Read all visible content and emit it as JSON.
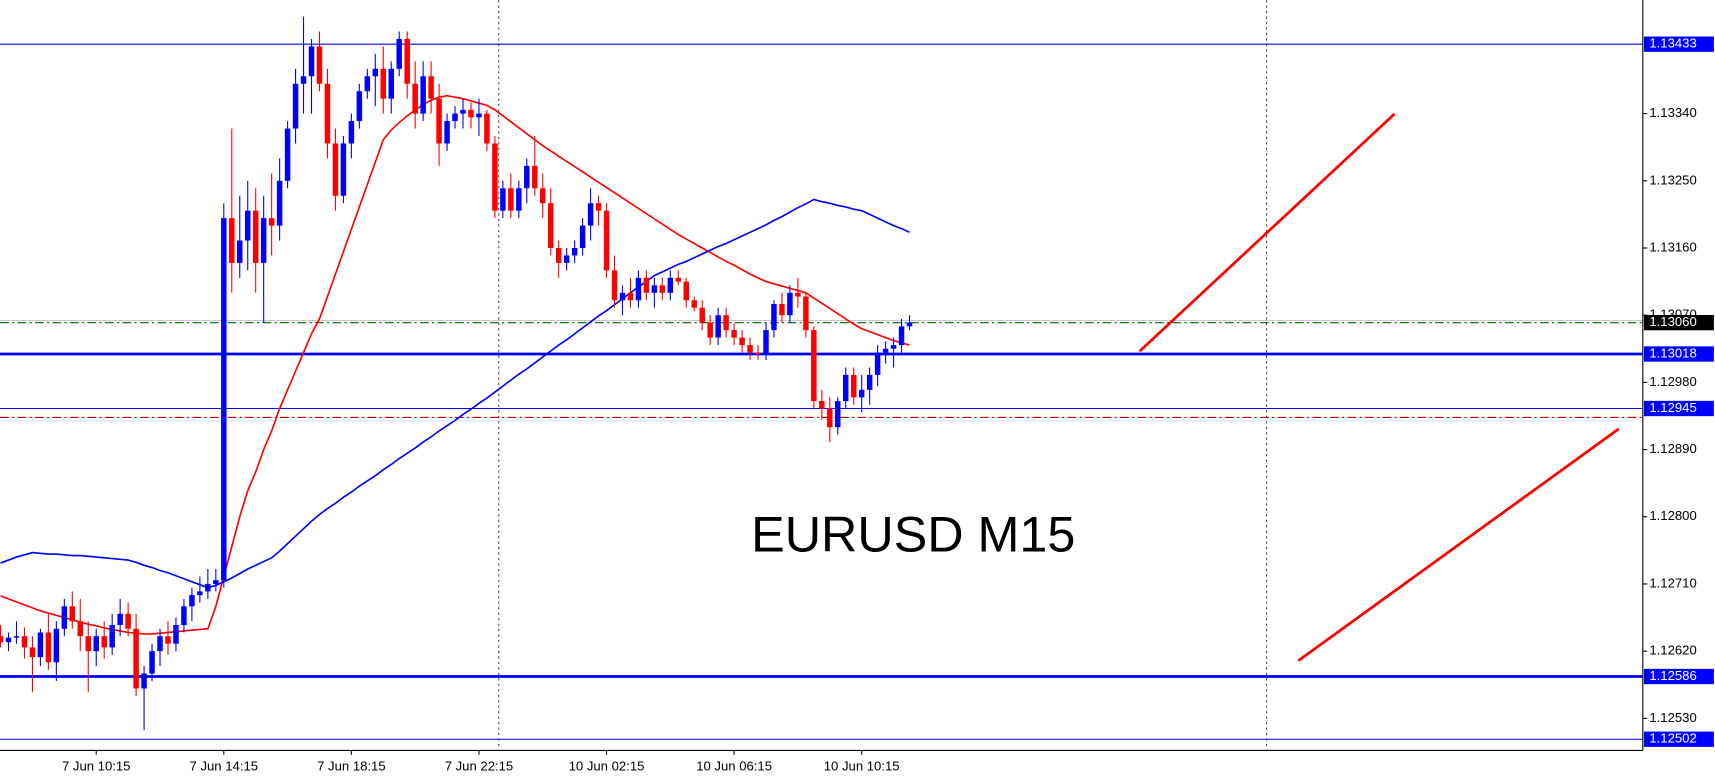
{
  "chart_data": {
    "type": "candlestick",
    "title": "EURUSD M15",
    "categories": [
      null,
      null,
      null,
      null,
      null,
      null,
      null,
      null,
      null,
      null,
      null,
      null,
      "7 Jun 10:15",
      null,
      null,
      null,
      null,
      null,
      null,
      null,
      null,
      null,
      null,
      null,
      null,
      null,
      null,
      null,
      "7 Jun 14:15",
      null,
      null,
      null,
      null,
      null,
      null,
      null,
      null,
      null,
      null,
      null,
      null,
      null,
      null,
      null,
      "7 Jun 18:15",
      null,
      null,
      null,
      null,
      null,
      null,
      null,
      null,
      null,
      null,
      null,
      null,
      null,
      null,
      null,
      "7 Jun 22:15",
      null,
      null,
      null,
      null,
      null,
      null,
      null,
      null,
      null,
      null,
      null,
      null,
      null,
      null,
      null,
      "10 Jun 02:15",
      null,
      null,
      null,
      null,
      null,
      null,
      null,
      null,
      null,
      null,
      null,
      null,
      null,
      null,
      null,
      "10 Jun 06:15",
      null,
      null,
      null,
      null,
      null,
      null,
      null,
      null,
      null,
      null,
      null,
      null,
      null,
      null,
      null,
      "10 Jun 10:15",
      null,
      null,
      null,
      null,
      null,
      null
    ],
    "ohlc": [
      [
        1.1264,
        1.12655,
        1.12625,
        1.12632
      ],
      [
        1.12632,
        1.12645,
        1.1262,
        1.12638
      ],
      [
        1.12638,
        1.1266,
        1.1263,
        1.1264
      ],
      [
        1.1264,
        1.12652,
        1.1261,
        1.12625
      ],
      [
        1.12625,
        1.1264,
        1.12565,
        1.12612
      ],
      [
        1.12612,
        1.1265,
        1.126,
        1.12645
      ],
      [
        1.12645,
        1.1267,
        1.12595,
        1.12605
      ],
      [
        1.12605,
        1.1266,
        1.1258,
        1.1265
      ],
      [
        1.1265,
        1.1269,
        1.1264,
        1.1268
      ],
      [
        1.1268,
        1.127,
        1.1265,
        1.1266
      ],
      [
        1.1266,
        1.1269,
        1.1262,
        1.1264
      ],
      [
        1.1264,
        1.1266,
        1.12565,
        1.1262
      ],
      [
        1.1262,
        1.1265,
        1.126,
        1.1264
      ],
      [
        1.1264,
        1.1266,
        1.1261,
        1.12625
      ],
      [
        1.12625,
        1.1267,
        1.12615,
        1.12655
      ],
      [
        1.12655,
        1.1269,
        1.1264,
        1.1267
      ],
      [
        1.1267,
        1.12685,
        1.1264,
        1.1265
      ],
      [
        1.1265,
        1.1267,
        1.1256,
        1.1257
      ],
      [
        1.1257,
        1.126,
        1.12514,
        1.1259
      ],
      [
        1.1259,
        1.1263,
        1.1258,
        1.1262
      ],
      [
        1.1262,
        1.1265,
        1.126,
        1.1264
      ],
      [
        1.1264,
        1.1266,
        1.12615,
        1.1263
      ],
      [
        1.1263,
        1.12665,
        1.1262,
        1.12655
      ],
      [
        1.12655,
        1.1269,
        1.12645,
        1.1268
      ],
      [
        1.1268,
        1.12705,
        1.1266,
        1.12695
      ],
      [
        1.12695,
        1.1272,
        1.12685,
        1.127
      ],
      [
        1.127,
        1.1273,
        1.1269,
        1.1271
      ],
      [
        1.1271,
        1.1273,
        1.127,
        1.12715
      ],
      [
        1.12715,
        1.1322,
        1.12705,
        1.132
      ],
      [
        1.132,
        1.1332,
        1.131,
        1.1314
      ],
      [
        1.1314,
        1.1323,
        1.1312,
        1.1317
      ],
      [
        1.1317,
        1.1325,
        1.1313,
        1.1321
      ],
      [
        1.1321,
        1.1324,
        1.131,
        1.1314
      ],
      [
        1.1314,
        1.1323,
        1.1306,
        1.132
      ],
      [
        1.132,
        1.1326,
        1.1315,
        1.1319
      ],
      [
        1.1319,
        1.1328,
        1.1317,
        1.1325
      ],
      [
        1.1325,
        1.1333,
        1.1324,
        1.1332
      ],
      [
        1.1332,
        1.134,
        1.133,
        1.1338
      ],
      [
        1.1338,
        1.1347,
        1.1334,
        1.1339
      ],
      [
        1.1339,
        1.1344,
        1.1334,
        1.1343
      ],
      [
        1.1343,
        1.1345,
        1.1337,
        1.1338
      ],
      [
        1.1338,
        1.134,
        1.1328,
        1.133
      ],
      [
        1.133,
        1.1332,
        1.1321,
        1.1323
      ],
      [
        1.1323,
        1.1331,
        1.1322,
        1.133
      ],
      [
        1.133,
        1.1334,
        1.1328,
        1.1333
      ],
      [
        1.1333,
        1.1338,
        1.1332,
        1.1337
      ],
      [
        1.1337,
        1.134,
        1.1336,
        1.1339
      ],
      [
        1.1339,
        1.1342,
        1.1335,
        1.134
      ],
      [
        1.134,
        1.1343,
        1.1334,
        1.1336
      ],
      [
        1.1336,
        1.1341,
        1.1334,
        1.134
      ],
      [
        1.134,
        1.1345,
        1.1339,
        1.1344
      ],
      [
        1.1344,
        1.1345,
        1.1336,
        1.1338
      ],
      [
        1.1338,
        1.1341,
        1.1332,
        1.1334
      ],
      [
        1.1334,
        1.1341,
        1.1333,
        1.1339
      ],
      [
        1.1339,
        1.1341,
        1.1334,
        1.1336
      ],
      [
        1.1336,
        1.1338,
        1.1327,
        1.133
      ],
      [
        1.133,
        1.1334,
        1.1329,
        1.1333
      ],
      [
        1.1333,
        1.1335,
        1.1332,
        1.1334
      ],
      [
        1.1334,
        1.1336,
        1.1332,
        1.13345
      ],
      [
        1.13345,
        1.13355,
        1.1332,
        1.13335
      ],
      [
        1.13335,
        1.1336,
        1.1331,
        1.1334
      ],
      [
        1.1334,
        1.13345,
        1.1329,
        1.133
      ],
      [
        1.133,
        1.1331,
        1.132,
        1.1321
      ],
      [
        1.1321,
        1.1325,
        1.132,
        1.1324
      ],
      [
        1.1324,
        1.1326,
        1.132,
        1.1321
      ],
      [
        1.1321,
        1.1325,
        1.132,
        1.1324
      ],
      [
        1.1324,
        1.1328,
        1.1322,
        1.1327
      ],
      [
        1.1327,
        1.1331,
        1.1323,
        1.1324
      ],
      [
        1.1324,
        1.1326,
        1.132,
        1.1322
      ],
      [
        1.1322,
        1.1324,
        1.1315,
        1.1316
      ],
      [
        1.1316,
        1.1317,
        1.1312,
        1.1314
      ],
      [
        1.1314,
        1.1316,
        1.1313,
        1.1315
      ],
      [
        1.1315,
        1.1317,
        1.1314,
        1.1316
      ],
      [
        1.1316,
        1.132,
        1.1315,
        1.1319
      ],
      [
        1.1319,
        1.1324,
        1.1317,
        1.1322
      ],
      [
        1.1322,
        1.1323,
        1.1319,
        1.1321
      ],
      [
        1.1321,
        1.1322,
        1.1312,
        1.1313
      ],
      [
        1.1313,
        1.1315,
        1.1308,
        1.1309
      ],
      [
        1.1309,
        1.1311,
        1.1307,
        1.131
      ],
      [
        1.131,
        1.1312,
        1.1308,
        1.1309
      ],
      [
        1.1309,
        1.1313,
        1.1308,
        1.1312
      ],
      [
        1.1312,
        1.1313,
        1.1309,
        1.131
      ],
      [
        1.131,
        1.1312,
        1.1308,
        1.1311
      ],
      [
        1.1311,
        1.1312,
        1.1309,
        1.131
      ],
      [
        1.131,
        1.1313,
        1.1309,
        1.1312
      ],
      [
        1.1312,
        1.1313,
        1.1311,
        1.13115
      ],
      [
        1.13115,
        1.1312,
        1.1308,
        1.1309
      ],
      [
        1.1309,
        1.13095,
        1.13075,
        1.1308
      ],
      [
        1.1308,
        1.1309,
        1.1305,
        1.1306
      ],
      [
        1.1306,
        1.1307,
        1.1303,
        1.1304
      ],
      [
        1.1304,
        1.1308,
        1.1303,
        1.1307
      ],
      [
        1.1307,
        1.1308,
        1.1304,
        1.1305
      ],
      [
        1.1305,
        1.1306,
        1.1303,
        1.1304
      ],
      [
        1.1304,
        1.1305,
        1.1302,
        1.1303
      ],
      [
        1.1303,
        1.1304,
        1.1301,
        1.1302
      ],
      [
        1.1302,
        1.1303,
        1.1301,
        1.13018
      ],
      [
        1.13018,
        1.1306,
        1.1301,
        1.1305
      ],
      [
        1.1305,
        1.1309,
        1.1304,
        1.13085
      ],
      [
        1.13085,
        1.131,
        1.1306,
        1.1307
      ],
      [
        1.1307,
        1.1311,
        1.1306,
        1.131
      ],
      [
        1.131,
        1.1312,
        1.1308,
        1.13095
      ],
      [
        1.13095,
        1.131,
        1.1304,
        1.1305
      ],
      [
        1.1305,
        1.13055,
        1.12945,
        1.12955
      ],
      [
        1.12955,
        1.1297,
        1.1293,
        1.12945
      ],
      [
        1.12945,
        1.1296,
        1.129,
        1.1292
      ],
      [
        1.1292,
        1.1296,
        1.1291,
        1.12955
      ],
      [
        1.12955,
        1.13,
        1.12945,
        1.1299
      ],
      [
        1.1299,
        1.13,
        1.1295,
        1.1296
      ],
      [
        1.1296,
        1.1299,
        1.1294,
        1.1297
      ],
      [
        1.1297,
        1.13,
        1.1295,
        1.1299
      ],
      [
        1.1299,
        1.1303,
        1.12975,
        1.1302
      ],
      [
        1.1302,
        1.13035,
        1.13005,
        1.13025
      ],
      [
        1.13025,
        1.1304,
        1.13,
        1.1303
      ],
      [
        1.1303,
        1.13065,
        1.1302,
        1.13055
      ],
      [
        1.13055,
        1.1307,
        1.1305,
        1.1306
      ]
    ],
    "up_color": "#0000ff",
    "down_color": "#ff0000",
    "overlays": [
      {
        "color": "#ff0000",
        "values": [
          1.12694,
          1.1269,
          1.12686,
          1.12682,
          1.12678,
          1.12674,
          1.12671,
          1.12668,
          1.12665,
          1.12662,
          1.12659,
          1.12656,
          1.12654,
          1.12651,
          1.12649,
          1.12647,
          1.12645,
          1.12644,
          1.12643,
          1.12643,
          1.12644,
          1.12645,
          1.12646,
          1.12647,
          1.12648,
          1.12649,
          1.1265,
          1.1268,
          1.1272,
          1.1276,
          1.128,
          1.12835,
          1.1286,
          1.1289,
          1.12915,
          1.12945,
          1.1297,
          1.12995,
          1.1302,
          1.13045,
          1.13065,
          1.13095,
          1.13125,
          1.13155,
          1.13185,
          1.13215,
          1.13245,
          1.13275,
          1.13305,
          1.13318,
          1.13328,
          1.13337,
          1.13345,
          1.13352,
          1.13358,
          1.13362,
          1.13364,
          1.13362,
          1.1336,
          1.13357,
          1.13354,
          1.13351,
          1.13345,
          1.13337,
          1.13329,
          1.13321,
          1.13313,
          1.13305,
          1.13297,
          1.1329,
          1.13283,
          1.13276,
          1.13269,
          1.13262,
          1.13255,
          1.13248,
          1.13241,
          1.13234,
          1.13227,
          1.1322,
          1.13213,
          1.13206,
          1.13199,
          1.13192,
          1.13185,
          1.13178,
          1.13172,
          1.13166,
          1.1316,
          1.13154,
          1.13148,
          1.13142,
          1.13137,
          1.13131,
          1.13125,
          1.1312,
          1.13115,
          1.13112,
          1.13109,
          1.13106,
          1.13103,
          1.131,
          1.13093,
          1.13086,
          1.13079,
          1.13072,
          1.13065,
          1.13058,
          1.13052,
          1.13048,
          1.13044,
          1.1304,
          1.13036,
          1.13033,
          1.1303
        ]
      },
      {
        "color": "#0000ff",
        "values": [
          1.12738,
          1.12742,
          1.12746,
          1.12749,
          1.12752,
          1.12751,
          1.1275,
          1.1275,
          1.12749,
          1.12748,
          1.12748,
          1.12747,
          1.12746,
          1.12745,
          1.12744,
          1.12743,
          1.12742,
          1.12739,
          1.12735,
          1.12732,
          1.12728,
          1.12725,
          1.12721,
          1.12717,
          1.12713,
          1.12709,
          1.12705,
          1.12708,
          1.12713,
          1.12718,
          1.12724,
          1.1273,
          1.12735,
          1.1274,
          1.12745,
          1.12754,
          1.12764,
          1.12774,
          1.12784,
          1.12794,
          1.12803,
          1.12811,
          1.12818,
          1.12826,
          1.12833,
          1.12841,
          1.12848,
          1.12855,
          1.12863,
          1.1287,
          1.12878,
          1.12885,
          1.12892,
          1.129,
          1.12907,
          1.12915,
          1.12922,
          1.12929,
          1.12937,
          1.12944,
          1.12952,
          1.12959,
          1.12967,
          1.12975,
          1.12983,
          1.12991,
          1.12998,
          1.13006,
          1.13014,
          1.13022,
          1.1303,
          1.13037,
          1.13045,
          1.13053,
          1.13061,
          1.13069,
          1.13076,
          1.13084,
          1.13092,
          1.131,
          1.13108,
          1.13115,
          1.13123,
          1.13128,
          1.13133,
          1.13138,
          1.13142,
          1.13147,
          1.13152,
          1.13157,
          1.13162,
          1.13166,
          1.13171,
          1.13176,
          1.13181,
          1.13186,
          1.13191,
          1.13197,
          1.13202,
          1.13208,
          1.13214,
          1.13219,
          1.13225,
          1.13222,
          1.1322,
          1.13217,
          1.13215,
          1.13212,
          1.1321,
          1.13205,
          1.132,
          1.13195,
          1.1319,
          1.13186,
          1.13181
        ]
      }
    ],
    "levels": [
      {
        "value": 1.13433,
        "color": "#0000ff",
        "style": "thin",
        "tag_color": "#0000ff"
      },
      {
        "value": 1.13018,
        "color": "#0000ff",
        "style": "thick",
        "tag_color": "#0000ff"
      },
      {
        "value": 1.12945,
        "color": "#0000ff",
        "style": "thin",
        "tag_color": "#0000ff"
      },
      {
        "value": 1.12586,
        "color": "#0000ff",
        "style": "thick",
        "tag_color": "#0000ff"
      },
      {
        "value": 1.12502,
        "color": "#0000ff",
        "style": "thin",
        "tag_color": "#0000ff"
      },
      {
        "value": 1.12933,
        "color": "#c00000",
        "style": "dashdot"
      },
      {
        "value": 1.1306,
        "label": "1.13060",
        "color": "#006400",
        "style": "dashdot",
        "tag_color": "#000000"
      }
    ],
    "ylim": [
      1.12487,
      1.13492
    ],
    "yticks": [
      {
        "value": 1.1334,
        "label": "1.13340"
      },
      {
        "value": 1.1325,
        "label": "1.13250"
      },
      {
        "value": 1.1316,
        "label": "1.13160"
      },
      {
        "value": 1.1307,
        "label": "1.13070"
      },
      {
        "value": 1.1298,
        "label": "1.12980"
      },
      {
        "value": 1.1289,
        "label": "1.12890"
      },
      {
        "value": 1.128,
        "label": "1.12800"
      },
      {
        "value": 1.1271,
        "label": "1.12710"
      },
      {
        "value": 1.1262,
        "label": "1.12620"
      },
      {
        "value": 1.1253,
        "label": "1.12530"
      }
    ]
  }
}
